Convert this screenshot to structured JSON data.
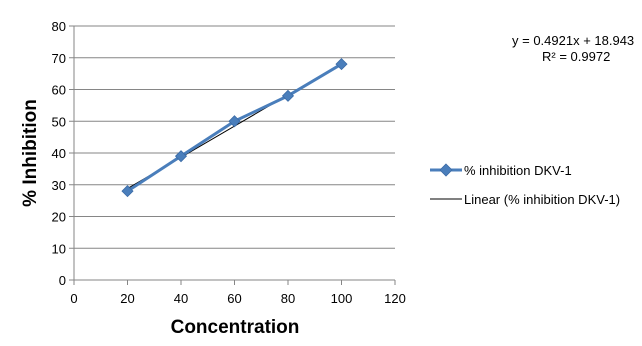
{
  "chart_data": {
    "type": "line",
    "xlabel": "Concentration",
    "ylabel": "% Inhibition",
    "xlim": [
      0,
      120
    ],
    "ylim": [
      0,
      80
    ],
    "x_ticks": [
      0,
      20,
      40,
      60,
      80,
      100,
      120
    ],
    "y_ticks": [
      0,
      10,
      20,
      30,
      40,
      50,
      60,
      70,
      80
    ],
    "grid": true,
    "legend_position": "right",
    "series": [
      {
        "name": "% inhibition DKV-1",
        "color": "#4a7ebb",
        "marker": "diamond",
        "x": [
          20,
          40,
          60,
          80,
          100
        ],
        "y": [
          28,
          39,
          50,
          58,
          68
        ]
      }
    ],
    "trendline": {
      "name": "Linear (% inhibition DKV-1)",
      "color": "#000000",
      "slope": 0.4921,
      "intercept": 18.943,
      "x_range": [
        20,
        100
      ],
      "equation_label": "y = 0.4921x + 18.943",
      "r2_label": "R² = 0.9972"
    }
  }
}
